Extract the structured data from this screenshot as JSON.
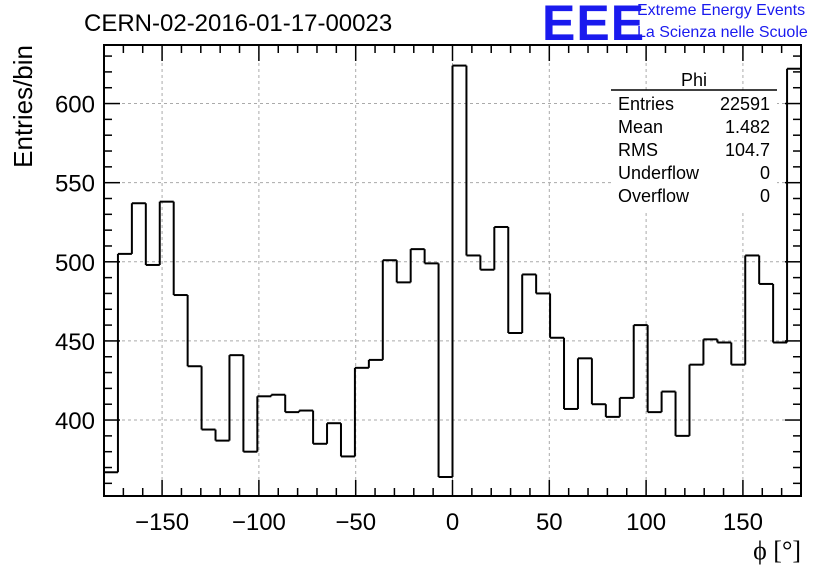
{
  "header": {
    "run_title": "CERN-02-2016-01-17-00023",
    "logo_mark": "EEE",
    "logo_line1": "Extreme Energy Events",
    "logo_line2": "La Scienza nelle Scuole"
  },
  "colors": {
    "logo": "#1a1aee",
    "histogram_line": "#000000",
    "grid": "#aaaaaa"
  },
  "stats_box": {
    "title": "Phi",
    "rows": [
      {
        "label": "Entries",
        "value": "22591"
      },
      {
        "label": "Mean",
        "value": "1.482"
      },
      {
        "label": "RMS",
        "value": "104.7"
      },
      {
        "label": "Underflow",
        "value": "0"
      },
      {
        "label": "Overflow",
        "value": "0"
      }
    ]
  },
  "chart_data": {
    "type": "histogram",
    "xlabel": "ϕ [°]",
    "ylabel": "Entries/bin",
    "xlim": [
      -180,
      180
    ],
    "ylim": [
      352,
      637
    ],
    "bin_width": 7.2,
    "x_ticks": [
      -150,
      -100,
      -50,
      0,
      50,
      100,
      150
    ],
    "x_tick_labels": [
      "−150",
      "−100",
      "−50",
      "0",
      "50",
      "100",
      "150"
    ],
    "y_ticks": [
      400,
      450,
      500,
      550,
      600
    ],
    "y_tick_labels": [
      "400",
      "450",
      "500",
      "550",
      "600"
    ],
    "grid": true,
    "bin_edges_start": -180,
    "values": [
      367,
      505,
      537,
      498,
      538,
      479,
      434,
      394,
      387,
      441,
      380,
      415,
      416,
      405,
      406,
      385,
      398,
      377,
      433,
      438,
      501,
      487,
      508,
      499,
      364,
      624,
      504,
      495,
      522,
      455,
      492,
      480,
      452,
      407,
      439,
      410,
      402,
      414,
      460,
      405,
      418,
      390,
      435,
      451,
      449,
      435,
      504,
      486,
      449,
      622
    ]
  }
}
